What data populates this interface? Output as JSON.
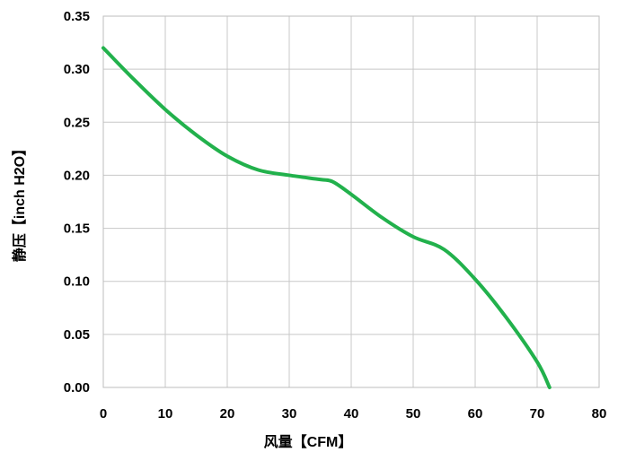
{
  "chart_data": {
    "type": "line",
    "xlabel": "风量【CFM】",
    "ylabel": "静压【inch H2O】",
    "xlim": [
      0,
      80
    ],
    "ylim": [
      0,
      0.35
    ],
    "x_ticks": [
      "0",
      "10",
      "20",
      "30",
      "40",
      "50",
      "60",
      "70",
      "80"
    ],
    "y_ticks": [
      "0.00",
      "0.05",
      "0.10",
      "0.15",
      "0.20",
      "0.25",
      "0.30",
      "0.35"
    ],
    "grid": true,
    "series": [
      {
        "color": "#22b14c",
        "x": [
          0,
          5,
          10,
          15,
          20,
          25,
          30,
          35,
          37,
          40,
          45,
          50,
          55,
          60,
          65,
          70,
          72
        ],
        "y": [
          0.32,
          0.29,
          0.262,
          0.238,
          0.218,
          0.205,
          0.2,
          0.196,
          0.194,
          0.182,
          0.16,
          0.142,
          0.13,
          0.102,
          0.066,
          0.024,
          0.0
        ]
      }
    ]
  }
}
